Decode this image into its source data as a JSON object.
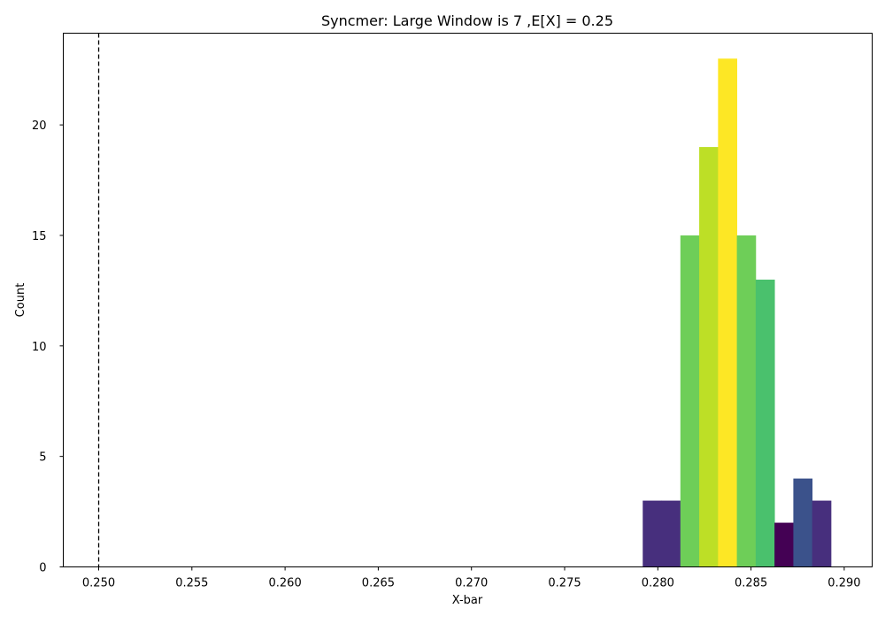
{
  "chart_data": {
    "type": "bar",
    "title": "Syncmer: Large Window is 7 ,E[X] = 0.25",
    "xlabel": "X-bar",
    "ylabel": "Count",
    "xlim": [
      0.2481,
      0.2915
    ],
    "ylim": [
      0,
      24.15
    ],
    "xticks": [
      "0.250",
      "0.255",
      "0.260",
      "0.265",
      "0.270",
      "0.275",
      "0.280",
      "0.285",
      "0.290"
    ],
    "yticks": [
      "0",
      "5",
      "10",
      "15",
      "20"
    ],
    "grid": false,
    "legend": "none",
    "bin_width": 0.00101,
    "bins": [
      {
        "x_start": 0.27919,
        "count": 3,
        "color": "#472f7d"
      },
      {
        "x_start": 0.2802,
        "count": 3,
        "color": "#472f7d"
      },
      {
        "x_start": 0.28121,
        "count": 15,
        "color": "#6ece58"
      },
      {
        "x_start": 0.28222,
        "count": 19,
        "color": "#bddf26"
      },
      {
        "x_start": 0.28323,
        "count": 23,
        "color": "#fde725"
      },
      {
        "x_start": 0.28424,
        "count": 15,
        "color": "#6ece58"
      },
      {
        "x_start": 0.28525,
        "count": 13,
        "color": "#4ac16d"
      },
      {
        "x_start": 0.28626,
        "count": 2,
        "color": "#440154"
      },
      {
        "x_start": 0.28727,
        "count": 4,
        "color": "#3b528b"
      },
      {
        "x_start": 0.28828,
        "count": 3,
        "color": "#472f7d"
      }
    ],
    "reference_line": {
      "x": 0.25,
      "style": "dashed",
      "color": "#000000"
    }
  }
}
